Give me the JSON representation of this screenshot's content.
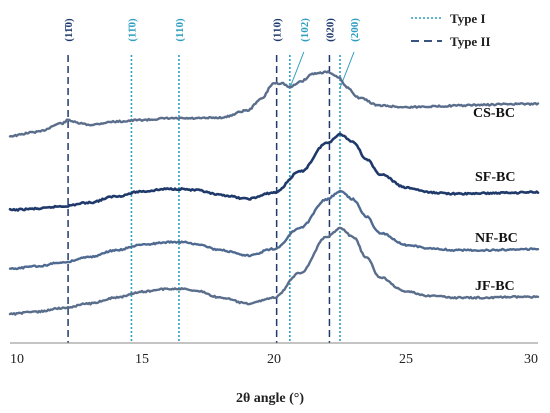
{
  "chart_data": {
    "type": "line",
    "xlabel": "2θ angle (°)",
    "xlim": [
      10,
      30
    ],
    "x_ticks": [
      10,
      15,
      20,
      25,
      30
    ],
    "y_ticks_shown": false,
    "grid": false,
    "legend": {
      "position": "top-right",
      "entries": [
        {
          "label": "Type I",
          "style": "dotted",
          "color": "#2f9ec0"
        },
        {
          "label": "Type II",
          "style": "dashed",
          "color": "#1f3b6e"
        }
      ]
    },
    "reference_lines": [
      {
        "label": "(11̄0)",
        "x": 12.2,
        "type": "Type II"
      },
      {
        "label": "(11̄0)",
        "x": 14.6,
        "type": "Type I"
      },
      {
        "label": "(110)",
        "x": 16.4,
        "type": "Type I"
      },
      {
        "label": "(110)",
        "x": 20.1,
        "type": "Type II"
      },
      {
        "label": "(102)",
        "x": 20.6,
        "type": "Type I"
      },
      {
        "label": "(020)",
        "x": 22.1,
        "type": "Type II"
      },
      {
        "label": "(200)",
        "x": 22.5,
        "type": "Type I"
      }
    ],
    "series": [
      {
        "name": "CS-BC",
        "color": "#5a6e8c",
        "x": [
          10,
          11,
          12,
          12.2,
          12.6,
          13,
          14,
          15,
          16,
          17,
          18,
          19,
          19.5,
          20,
          20.3,
          20.6,
          21,
          21.5,
          22,
          22.4,
          22.8,
          23.2,
          24,
          25,
          26,
          27,
          28,
          29,
          30
        ],
        "y": [
          0.3,
          0.35,
          0.46,
          0.5,
          0.46,
          0.44,
          0.48,
          0.5,
          0.52,
          0.52,
          0.53,
          0.62,
          0.76,
          0.96,
          0.96,
          0.91,
          0.98,
          1.08,
          1.1,
          1.04,
          0.9,
          0.78,
          0.68,
          0.66,
          0.67,
          0.68,
          0.69,
          0.7,
          0.7
        ]
      },
      {
        "name": "SF-BC",
        "color": "#1f3a6a",
        "x": [
          10,
          11,
          12,
          13,
          14,
          15,
          16,
          16.5,
          17,
          18,
          19,
          20,
          21,
          22,
          22.5,
          23,
          23.5,
          24,
          25,
          26,
          27,
          28,
          29,
          30
        ],
        "y": [
          0.0,
          0.02,
          0.06,
          0.12,
          0.22,
          0.3,
          0.34,
          0.34,
          0.32,
          0.24,
          0.18,
          0.28,
          0.62,
          1.08,
          1.22,
          1.1,
          0.82,
          0.58,
          0.36,
          0.28,
          0.26,
          0.27,
          0.28,
          0.29
        ]
      },
      {
        "name": "NF-BC",
        "color": "#4f6a90",
        "x": [
          10,
          11,
          12,
          13,
          14,
          15,
          16,
          16.5,
          17,
          18,
          19,
          20,
          21,
          22,
          22.5,
          23,
          23.5,
          24,
          25,
          26,
          27,
          28,
          29,
          30
        ],
        "y": [
          0.0,
          0.04,
          0.1,
          0.18,
          0.28,
          0.36,
          0.4,
          0.4,
          0.38,
          0.28,
          0.2,
          0.3,
          0.62,
          1.04,
          1.16,
          1.04,
          0.78,
          0.54,
          0.36,
          0.3,
          0.28,
          0.28,
          0.29,
          0.3
        ]
      },
      {
        "name": "JF-BC",
        "color": "#5a6e8c",
        "x": [
          10,
          11,
          12,
          13,
          14,
          15,
          16,
          16.5,
          17,
          18,
          19,
          20,
          21,
          22,
          22.5,
          23,
          23.5,
          24,
          25,
          26,
          27,
          28,
          29,
          30
        ],
        "y": [
          0.0,
          0.03,
          0.08,
          0.14,
          0.22,
          0.3,
          0.34,
          0.34,
          0.32,
          0.22,
          0.14,
          0.22,
          0.56,
          1.04,
          1.16,
          1.04,
          0.76,
          0.5,
          0.3,
          0.24,
          0.22,
          0.22,
          0.23,
          0.23
        ]
      }
    ]
  }
}
